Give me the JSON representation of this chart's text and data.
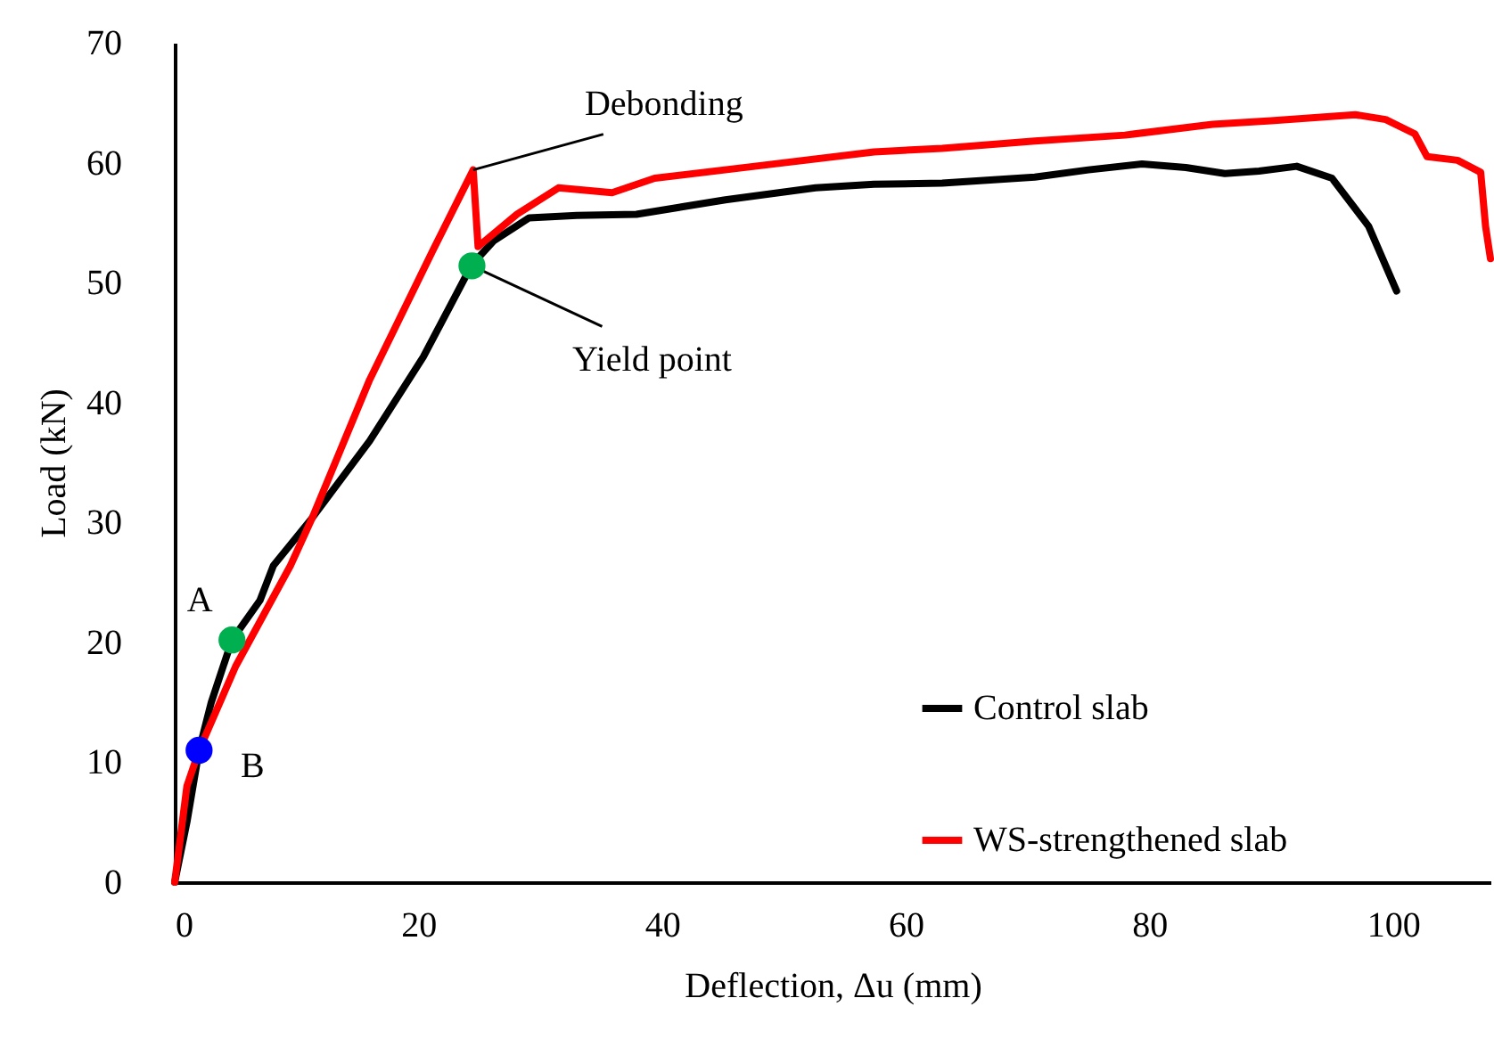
{
  "chart_data": {
    "type": "line",
    "xlabel": "Deflection, Δu (mm)",
    "ylabel": "Load (kN)",
    "xlim": [
      0,
      108
    ],
    "xticks": [
      0,
      20,
      40,
      60,
      80,
      100
    ],
    "ylim": [
      0,
      70
    ],
    "yticks": [
      0,
      10,
      20,
      30,
      40,
      50,
      60,
      70
    ],
    "grid": false,
    "legend": "bottom right",
    "line_style": "solid",
    "marker": "none",
    "series": [
      {
        "name": "Control slab",
        "color": "#000000",
        "x": [
          0,
          1,
          2,
          3,
          4.7,
          7,
          8.1,
          11.3,
          16,
          20.4,
          24.4,
          26.2,
          29.1,
          33,
          37.9,
          45.2,
          52.6,
          57.4,
          63,
          70.6,
          75,
          79.4,
          83,
          86.2,
          89,
          92.1,
          95,
          98,
          100.3
        ],
        "values": [
          0,
          5,
          11,
          15,
          20.2,
          23.5,
          26.4,
          30.4,
          36.8,
          43.8,
          51.5,
          53.5,
          55.4,
          55.6,
          55.7,
          56.9,
          57.9,
          58.2,
          58.3,
          58.8,
          59.4,
          59.9,
          59.6,
          59.1,
          59.3,
          59.7,
          58.7,
          54.7,
          49.3
        ]
      },
      {
        "name": "WS-strengthened slab",
        "color": "#ff0000",
        "x": [
          0,
          0.5,
          1,
          2,
          5,
          9.5,
          11.3,
          16,
          21.2,
          24.5,
          24.9,
          28.1,
          31.5,
          35.9,
          39.4,
          47.6,
          57.4,
          63,
          70.6,
          78,
          85.2,
          90,
          96.9,
          99.4,
          101.8,
          102.8,
          105.3,
          107.2,
          107.6,
          108
        ],
        "values": [
          0,
          4,
          8,
          11,
          18,
          26.4,
          30.4,
          41.9,
          52.7,
          59.4,
          53,
          55.7,
          57.9,
          57.5,
          58.7,
          59.7,
          60.9,
          61.2,
          61.8,
          62.3,
          63.2,
          63.5,
          64,
          63.6,
          62.4,
          60.5,
          60.2,
          59.2,
          54.7,
          52
        ]
      },
      {
        "type": "scatter",
        "marker": "circle",
        "x": [
          4.7,
          2,
          24.4
        ],
        "values": [
          20.2,
          11,
          51.4
        ],
        "colors": [
          "#00b050",
          "#0000ff",
          "#00b050"
        ]
      }
    ],
    "annotations": [
      {
        "text": "Debonding",
        "x": 24.5,
        "y": 59.4
      },
      {
        "text": "Yield point",
        "x": 24.4,
        "y": 51.4
      },
      {
        "text": "A",
        "x": 4.7,
        "y": 20.2
      },
      {
        "text": "B",
        "x": 2,
        "y": 11
      }
    ]
  }
}
